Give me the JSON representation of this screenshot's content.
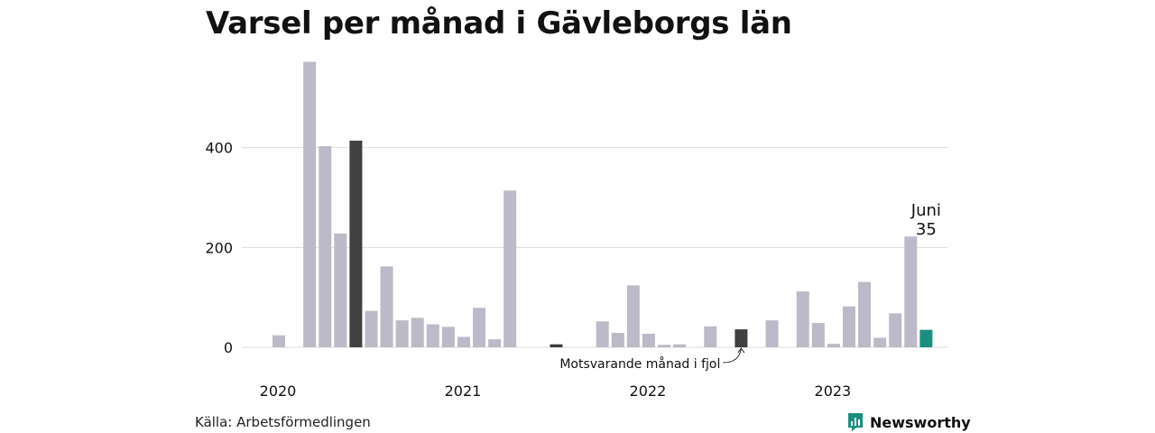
{
  "title": "Varsel per månad i Gävleborgs län",
  "source": "Källa: Arbetsförmedlingen",
  "brand": {
    "name": "Newsworthy",
    "icon": "newsworthy-logo-icon",
    "color": "#1a8f80"
  },
  "colors": {
    "default": "#bcbac8",
    "highlight": "#404040",
    "latest": "#1a8f80",
    "grid": "#dddddd"
  },
  "annotation": "Motsvarande månad i fjol",
  "callout": {
    "month": "Juni",
    "value": "35"
  },
  "chart_data": {
    "type": "bar",
    "ylim": [
      0,
      600
    ],
    "yticks": [
      0,
      200,
      400
    ],
    "x_tick_labels": [
      {
        "label": "2020",
        "month_index": 0
      },
      {
        "label": "2021",
        "month_index": 12
      },
      {
        "label": "2022",
        "month_index": 24
      },
      {
        "label": "2023",
        "month_index": 36
      }
    ],
    "values": [
      24,
      0,
      572,
      403,
      228,
      414,
      73,
      162,
      54,
      59,
      46,
      41,
      21,
      79,
      16,
      314,
      0,
      0,
      6,
      0,
      0,
      52,
      29,
      124,
      27,
      5,
      6,
      0,
      42,
      0,
      36,
      0,
      54,
      0,
      112,
      49,
      7,
      82,
      131,
      19,
      68,
      222,
      35
    ],
    "highlight_indices": [
      5,
      18,
      30
    ],
    "latest_index": 42
  }
}
